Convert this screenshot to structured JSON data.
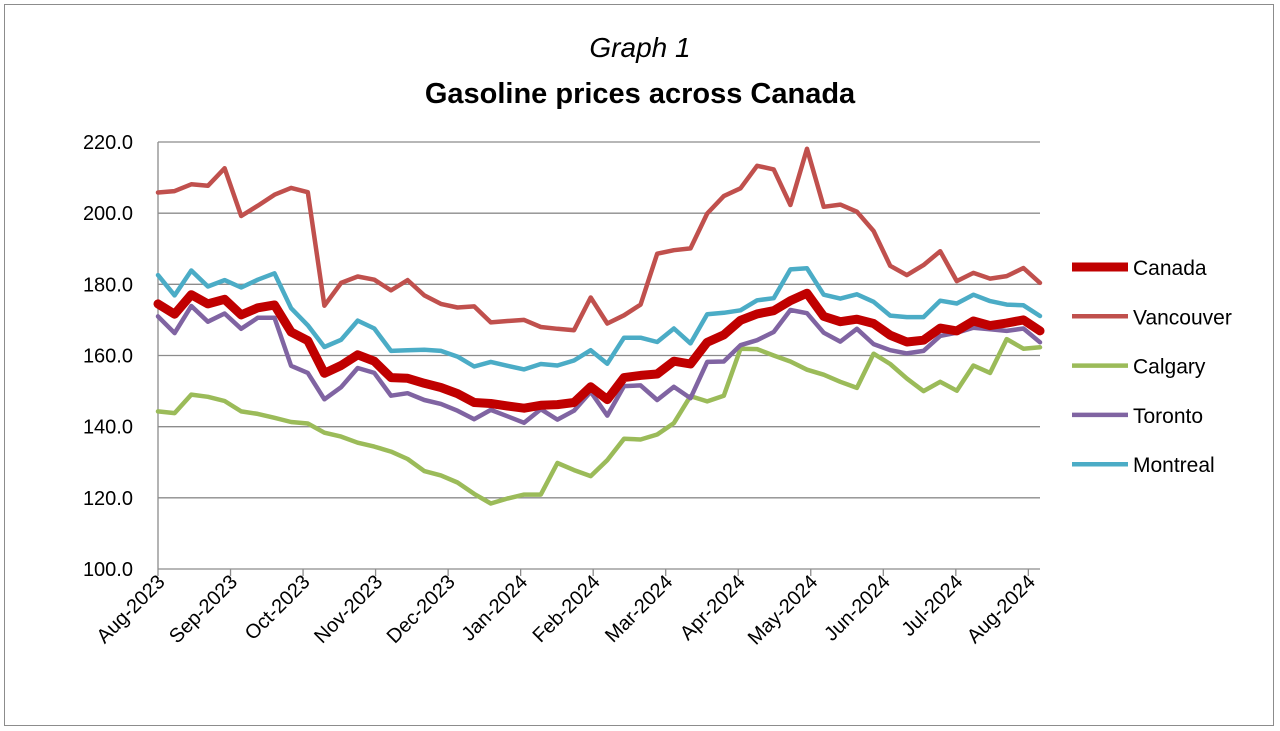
{
  "chart_data": {
    "type": "line",
    "title_prefix": "Graph 1",
    "title": "Gasoline prices across Canada",
    "xlabel": "",
    "ylabel": "",
    "ylim": [
      100,
      220
    ],
    "y_ticks": [
      "100.0",
      "120.0",
      "140.0",
      "160.0",
      "180.0",
      "200.0",
      "220.0"
    ],
    "x_ticks": [
      "Aug-2023",
      "Sep-2023",
      "Oct-2023",
      "Nov-2023",
      "Dec-2023",
      "Jan-2024",
      "Feb-2024",
      "Mar-2024",
      "Apr-2024",
      "May-2024",
      "Jun-2024",
      "Jul-2024",
      "Aug-2024"
    ],
    "grid": "horizontal",
    "legend_position": "right",
    "series": [
      {
        "name": "Canada",
        "color": "#c00000",
        "emphasis": "thick",
        "values": [
          174.5,
          171.6,
          177.1,
          174.5,
          175.8,
          171.4,
          173.4,
          174.2,
          166.6,
          164.2,
          155.0,
          157.2,
          160.2,
          158.4,
          153.8,
          153.6,
          152.2,
          151.0,
          149.3,
          146.8,
          146.5,
          145.8,
          145.2,
          146.0,
          146.2,
          146.8,
          151.2,
          147.6,
          153.8,
          154.4,
          154.8,
          158.4,
          157.6,
          163.7,
          165.8,
          169.9,
          171.7,
          172.6,
          175.4,
          177.5,
          171.0,
          169.5,
          170.2,
          169.0,
          165.7,
          163.8,
          164.3,
          167.7,
          166.9,
          169.7,
          168.4,
          169.1,
          170.0,
          166.9
        ]
      },
      {
        "name": "Vancouver",
        "color": "#c0504d",
        "emphasis": "normal",
        "values": [
          205.8,
          206.2,
          208.1,
          207.7,
          212.6,
          199.2,
          202.1,
          205.2,
          207.1,
          205.9,
          174.0,
          180.4,
          182.2,
          181.3,
          178.3,
          181.2,
          176.9,
          174.5,
          173.5,
          173.8,
          169.3,
          169.7,
          170.0,
          168.0,
          167.5,
          167.1,
          176.3,
          169.0,
          171.3,
          174.3,
          188.6,
          189.6,
          190.1,
          199.9,
          204.8,
          207.0,
          213.3,
          212.3,
          202.3,
          218.1,
          201.8,
          202.4,
          200.4,
          195.0,
          185.2,
          182.6,
          185.4,
          189.3,
          180.9,
          183.2,
          181.6,
          182.3,
          184.6,
          180.4
        ]
      },
      {
        "name": "Calgary",
        "color": "#9bbb59",
        "emphasis": "normal",
        "values": [
          144.3,
          143.8,
          149.0,
          148.4,
          147.2,
          144.3,
          143.6,
          142.5,
          141.3,
          140.9,
          138.3,
          137.2,
          135.5,
          134.4,
          133.0,
          130.9,
          127.5,
          126.3,
          124.3,
          121.1,
          118.4,
          119.8,
          120.9,
          120.9,
          129.8,
          127.8,
          126.1,
          130.6,
          136.6,
          136.4,
          137.8,
          141.0,
          148.6,
          147.1,
          148.7,
          161.9,
          161.8,
          160.0,
          158.3,
          156.0,
          154.6,
          152.6,
          150.9,
          160.5,
          157.6,
          153.5,
          150.0,
          152.6,
          150.1,
          157.2,
          155.1,
          164.6,
          161.9,
          162.3
        ]
      },
      {
        "name": "Toronto",
        "color": "#8064a2",
        "emphasis": "normal",
        "values": [
          171.0,
          166.3,
          173.9,
          169.5,
          171.8,
          167.5,
          170.6,
          170.6,
          157.1,
          155.1,
          147.7,
          151.1,
          156.5,
          155.1,
          148.7,
          149.4,
          147.5,
          146.4,
          144.5,
          142.1,
          144.7,
          142.9,
          141.1,
          144.9,
          142.0,
          144.5,
          149.8,
          143.1,
          151.4,
          151.6,
          147.5,
          151.2,
          148.0,
          158.2,
          158.3,
          162.9,
          164.3,
          166.6,
          172.8,
          171.9,
          166.4,
          163.9,
          167.5,
          163.2,
          161.5,
          160.6,
          161.3,
          165.5,
          166.4,
          167.8,
          167.4,
          166.9,
          167.6,
          163.7
        ]
      },
      {
        "name": "Montreal",
        "color": "#4bacc6",
        "emphasis": "normal",
        "values": [
          182.6,
          176.9,
          183.9,
          179.4,
          181.2,
          179.1,
          181.3,
          183.1,
          173.3,
          168.5,
          162.4,
          164.4,
          169.8,
          167.6,
          161.3,
          161.5,
          161.6,
          161.3,
          159.7,
          156.9,
          158.2,
          157.1,
          156.1,
          157.6,
          157.2,
          158.6,
          161.5,
          157.7,
          165.0,
          165.0,
          163.8,
          167.6,
          163.4,
          171.6,
          172.0,
          172.7,
          175.5,
          176.1,
          184.2,
          184.5,
          177.1,
          176.0,
          177.2,
          175.1,
          171.2,
          170.8,
          170.8,
          175.4,
          174.6,
          177.1,
          175.3,
          174.3,
          174.1,
          171.1
        ]
      }
    ]
  }
}
